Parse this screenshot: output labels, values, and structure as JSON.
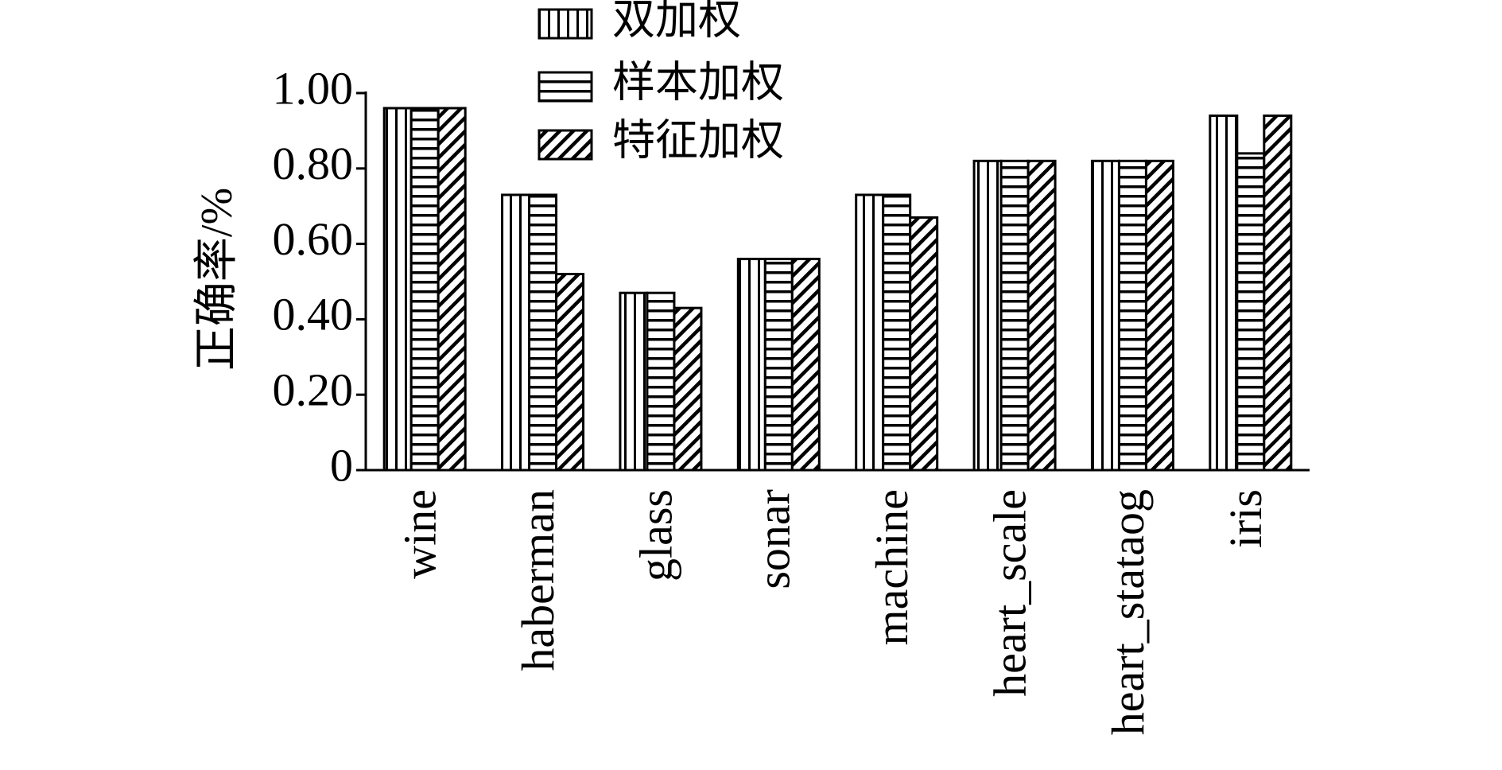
{
  "chart_data": {
    "type": "bar",
    "y_label": "正确率/%",
    "categories": [
      "wine",
      "haberman",
      "glass",
      "sonar",
      "machine",
      "heart_scale",
      "heart_stataog",
      "iris"
    ],
    "series": [
      {
        "name": "双加权",
        "color": "#000000",
        "pattern": "vertical",
        "values": [
          0.96,
          0.73,
          0.47,
          0.56,
          0.73,
          0.82,
          0.82,
          0.94
        ]
      },
      {
        "name": "样本加权",
        "color": "#000000",
        "pattern": "horizontal",
        "values": [
          0.96,
          0.73,
          0.47,
          0.56,
          0.73,
          0.82,
          0.82,
          0.84
        ]
      },
      {
        "name": "特征加权",
        "color": "#000000",
        "pattern": "diagonal",
        "values": [
          0.96,
          0.52,
          0.43,
          0.56,
          0.67,
          0.82,
          0.82,
          0.94
        ]
      }
    ],
    "ylim": [
      0,
      1
    ],
    "yticks": [
      0,
      {
        "value": 0.2,
        "label": "0.20"
      },
      {
        "value": 0.4,
        "label": "0.40"
      },
      {
        "value": 0.6,
        "label": "0.60"
      },
      {
        "value": 0.8,
        "label": "0.80"
      },
      {
        "value": 1,
        "label": "1.00"
      }
    ],
    "grid": false
  }
}
